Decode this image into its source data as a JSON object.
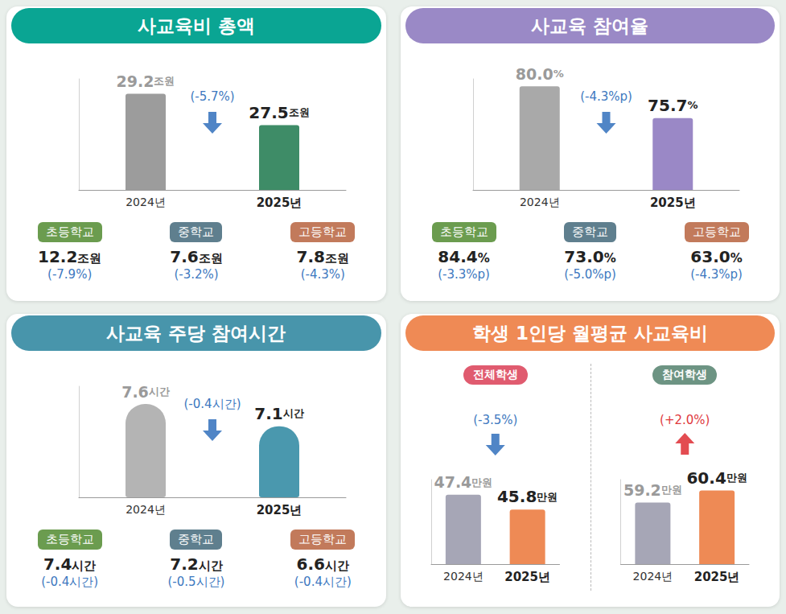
{
  "chart_data": [
    {
      "type": "bar",
      "title": "사교육비 총액",
      "categories": [
        "2024년",
        "2025년"
      ],
      "values": [
        29.2,
        27.5
      ],
      "value_labels": [
        "29.2조원",
        "27.5조원"
      ],
      "colors": [
        "#9c9c9c",
        "#3e8c67"
      ],
      "ylim": [
        24,
        30
      ],
      "data_labels": true,
      "tick_labels": "x",
      "grid": false,
      "annotations": [
        {
          "text": "(-5.7%)",
          "color": "#3d78c0"
        }
      ],
      "breakdown": [
        {
          "label": "초등학교",
          "value_label": "12.2조원",
          "change": "(-7.9%)"
        },
        {
          "label": "중학교",
          "value_label": "7.6조원",
          "change": "(-3.2%)"
        },
        {
          "label": "고등학교",
          "value_label": "7.8조원",
          "change": "(-4.3%)"
        }
      ]
    },
    {
      "type": "bar",
      "title": "사교육 참여율",
      "categories": [
        "2024년",
        "2025년"
      ],
      "values": [
        80.0,
        75.7
      ],
      "value_labels": [
        "80.0%",
        "75.7%"
      ],
      "colors": [
        "#a9a9a9",
        "#9a88c6"
      ],
      "ylim": [
        66,
        81
      ],
      "data_labels": true,
      "tick_labels": "x",
      "grid": false,
      "annotations": [
        {
          "text": "(-4.3%p)",
          "color": "#3d78c0"
        }
      ],
      "breakdown": [
        {
          "label": "초등학교",
          "value_label": "84.4%",
          "change": "(-3.3%p)"
        },
        {
          "label": "중학교",
          "value_label": "73.0%",
          "change": "(-5.0%p)"
        },
        {
          "label": "고등학교",
          "value_label": "63.0%",
          "change": "(-4.3%p)"
        }
      ]
    },
    {
      "type": "bar",
      "title": "사교육 주당 참여시간",
      "categories": [
        "2024년",
        "2025년"
      ],
      "values": [
        7.6,
        7.1
      ],
      "value_labels": [
        "7.6시간",
        "7.1시간"
      ],
      "colors": [
        "#b4b4b4",
        "#4a98ae"
      ],
      "ylim": [
        5.5,
        8
      ],
      "data_labels": true,
      "tick_labels": "x",
      "grid": false,
      "annotations": [
        {
          "text": "(-0.4시간)",
          "color": "#3d78c0"
        }
      ],
      "breakdown": [
        {
          "label": "초등학교",
          "value_label": "7.4시간",
          "change": "(-0.4시간)"
        },
        {
          "label": "중학교",
          "value_label": "7.2시간",
          "change": "(-0.5시간)"
        },
        {
          "label": "고등학교",
          "value_label": "6.6시간",
          "change": "(-0.4시간)"
        }
      ]
    },
    {
      "type": "bar",
      "title": "학생 1인당 월평균 사교육비",
      "subtitle": "전체학생",
      "categories": [
        "2024년",
        "2025년"
      ],
      "values": [
        47.4,
        45.8
      ],
      "value_labels": [
        "47.4만원",
        "45.8만원"
      ],
      "colors": [
        "#a6a6b6",
        "#ee8a55"
      ],
      "ylim": [
        40,
        49
      ],
      "data_labels": true,
      "tick_labels": "x",
      "grid": false,
      "annotations": [
        {
          "text": "(-3.5%)",
          "color": "#3d78c0"
        }
      ]
    },
    {
      "type": "bar",
      "subtitle": "참여학생",
      "categories": [
        "2024년",
        "2025년"
      ],
      "values": [
        59.2,
        60.4
      ],
      "value_labels": [
        "59.2만원",
        "60.4만원"
      ],
      "colors": [
        "#a6a6b6",
        "#ee8a55"
      ],
      "ylim": [
        53,
        61.5
      ],
      "data_labels": true,
      "tick_labels": "x",
      "grid": false,
      "annotations": [
        {
          "text": "(+2.0%)",
          "color": "#e0393e"
        }
      ]
    }
  ]
}
